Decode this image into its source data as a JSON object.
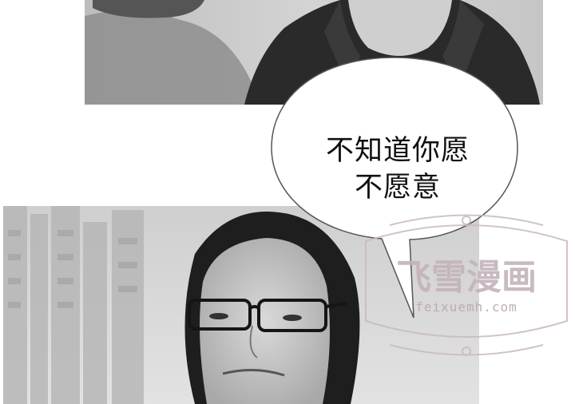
{
  "speech_bubble": {
    "line1": "不知道你愿",
    "line2": "不愿意"
  },
  "watermark": {
    "logo_text": "飞雪漫画",
    "domain": "feixuemh.com"
  }
}
